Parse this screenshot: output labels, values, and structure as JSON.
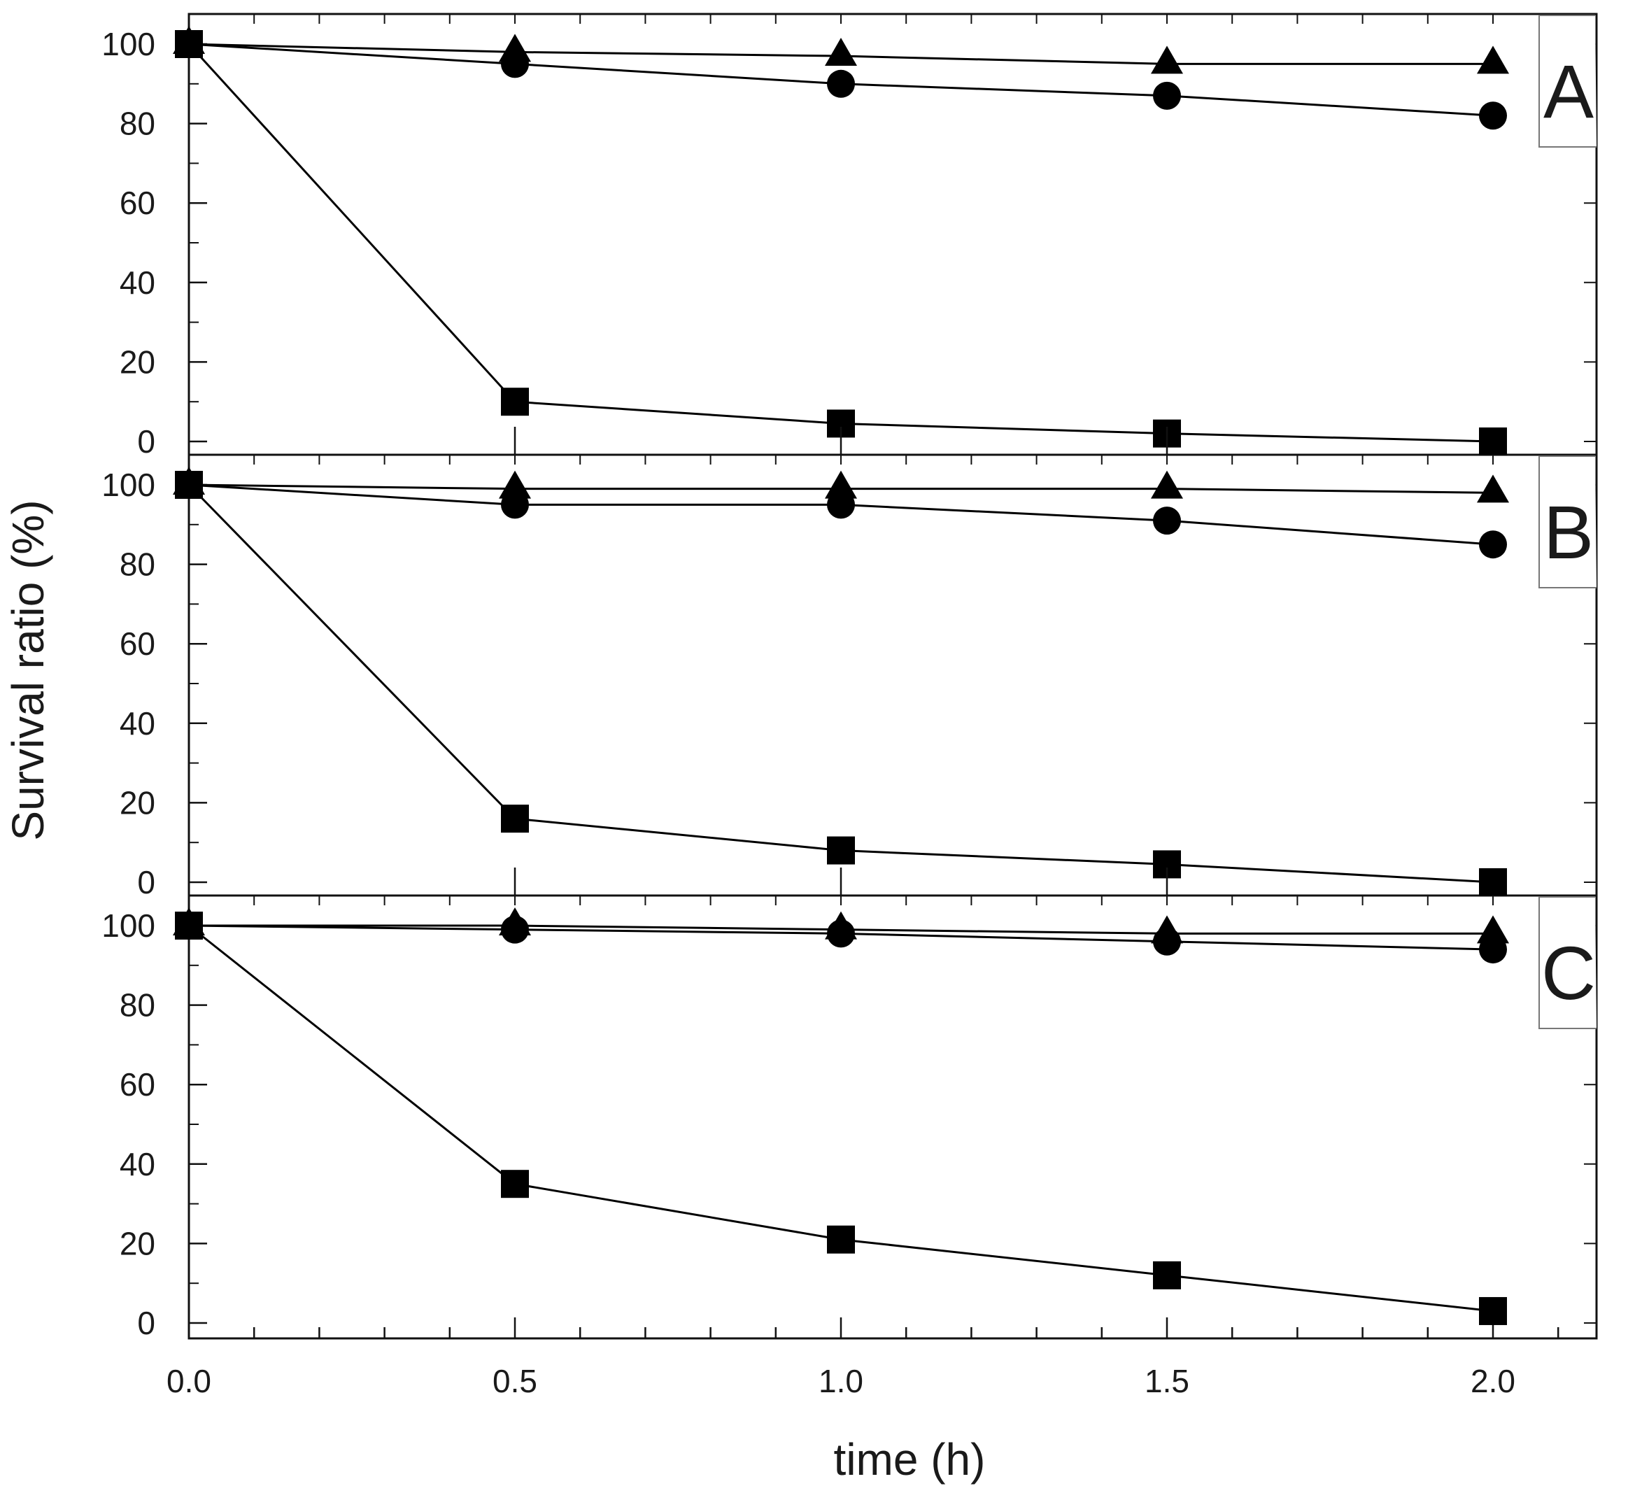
{
  "chart_data": {
    "type": "line",
    "xlabel": "time (h)",
    "ylabel": "Survival ratio (%)",
    "x_ticks": [
      "0.0",
      "0.5",
      "1.0",
      "1.5",
      "2.0"
    ],
    "x_tick_values": [
      0,
      0.5,
      1.0,
      1.5,
      2.0
    ],
    "y_ticks": [
      "0",
      "20",
      "40",
      "60",
      "80",
      "100"
    ],
    "y_tick_values": [
      0,
      20,
      40,
      60,
      80,
      100
    ],
    "xlim": [
      0,
      2.2
    ],
    "ylim": [
      -6,
      105
    ],
    "x": [
      0,
      0.5,
      1.0,
      1.5,
      2.0
    ],
    "panels": [
      {
        "label": "A",
        "series": [
          {
            "name": "triangle",
            "marker": "triangle",
            "values": [
              100,
              98,
              97,
              95,
              95
            ]
          },
          {
            "name": "circle",
            "marker": "circle",
            "values": [
              100,
              95,
              90,
              87,
              82
            ]
          },
          {
            "name": "square",
            "marker": "square",
            "values": [
              100,
              10,
              4.5,
              2,
              0
            ]
          }
        ]
      },
      {
        "label": "B",
        "series": [
          {
            "name": "triangle",
            "marker": "triangle",
            "values": [
              100,
              99,
              99,
              99,
              98
            ]
          },
          {
            "name": "circle",
            "marker": "circle",
            "values": [
              100,
              95,
              95,
              91,
              85
            ]
          },
          {
            "name": "square",
            "marker": "square",
            "values": [
              100,
              16,
              8,
              4.5,
              0
            ]
          }
        ]
      },
      {
        "label": "C",
        "series": [
          {
            "name": "triangle",
            "marker": "triangle",
            "values": [
              100,
              100,
              99,
              98,
              98
            ]
          },
          {
            "name": "circle",
            "marker": "circle",
            "values": [
              100,
              99,
              98,
              96,
              94
            ]
          },
          {
            "name": "square",
            "marker": "square",
            "values": [
              100,
              35,
              21,
              12,
              3
            ]
          }
        ]
      }
    ]
  }
}
